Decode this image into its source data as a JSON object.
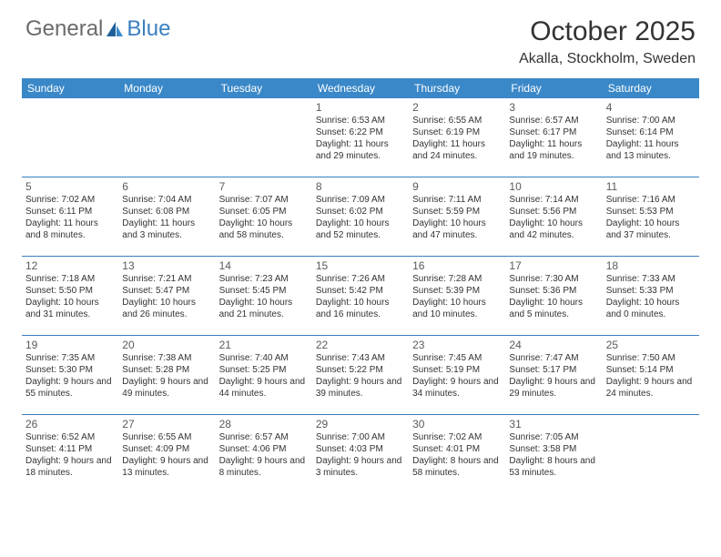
{
  "logo": {
    "text1": "General",
    "text2": "Blue"
  },
  "title": "October 2025",
  "location": "Akalla, Stockholm, Sweden",
  "colors": {
    "header_bg": "#3a88c8",
    "header_text": "#ffffff",
    "rule": "#3a7fbf",
    "body_text": "#333333",
    "logo_gray": "#6b6b6b",
    "logo_blue": "#3a7fbf",
    "page_bg": "#ffffff"
  },
  "dow": [
    "Sunday",
    "Monday",
    "Tuesday",
    "Wednesday",
    "Thursday",
    "Friday",
    "Saturday"
  ],
  "weeks": [
    [
      {
        "n": "",
        "sr": "",
        "ss": "",
        "dl": ""
      },
      {
        "n": "",
        "sr": "",
        "ss": "",
        "dl": ""
      },
      {
        "n": "",
        "sr": "",
        "ss": "",
        "dl": ""
      },
      {
        "n": "1",
        "sr": "Sunrise: 6:53 AM",
        "ss": "Sunset: 6:22 PM",
        "dl": "Daylight: 11 hours and 29 minutes."
      },
      {
        "n": "2",
        "sr": "Sunrise: 6:55 AM",
        "ss": "Sunset: 6:19 PM",
        "dl": "Daylight: 11 hours and 24 minutes."
      },
      {
        "n": "3",
        "sr": "Sunrise: 6:57 AM",
        "ss": "Sunset: 6:17 PM",
        "dl": "Daylight: 11 hours and 19 minutes."
      },
      {
        "n": "4",
        "sr": "Sunrise: 7:00 AM",
        "ss": "Sunset: 6:14 PM",
        "dl": "Daylight: 11 hours and 13 minutes."
      }
    ],
    [
      {
        "n": "5",
        "sr": "Sunrise: 7:02 AM",
        "ss": "Sunset: 6:11 PM",
        "dl": "Daylight: 11 hours and 8 minutes."
      },
      {
        "n": "6",
        "sr": "Sunrise: 7:04 AM",
        "ss": "Sunset: 6:08 PM",
        "dl": "Daylight: 11 hours and 3 minutes."
      },
      {
        "n": "7",
        "sr": "Sunrise: 7:07 AM",
        "ss": "Sunset: 6:05 PM",
        "dl": "Daylight: 10 hours and 58 minutes."
      },
      {
        "n": "8",
        "sr": "Sunrise: 7:09 AM",
        "ss": "Sunset: 6:02 PM",
        "dl": "Daylight: 10 hours and 52 minutes."
      },
      {
        "n": "9",
        "sr": "Sunrise: 7:11 AM",
        "ss": "Sunset: 5:59 PM",
        "dl": "Daylight: 10 hours and 47 minutes."
      },
      {
        "n": "10",
        "sr": "Sunrise: 7:14 AM",
        "ss": "Sunset: 5:56 PM",
        "dl": "Daylight: 10 hours and 42 minutes."
      },
      {
        "n": "11",
        "sr": "Sunrise: 7:16 AM",
        "ss": "Sunset: 5:53 PM",
        "dl": "Daylight: 10 hours and 37 minutes."
      }
    ],
    [
      {
        "n": "12",
        "sr": "Sunrise: 7:18 AM",
        "ss": "Sunset: 5:50 PM",
        "dl": "Daylight: 10 hours and 31 minutes."
      },
      {
        "n": "13",
        "sr": "Sunrise: 7:21 AM",
        "ss": "Sunset: 5:47 PM",
        "dl": "Daylight: 10 hours and 26 minutes."
      },
      {
        "n": "14",
        "sr": "Sunrise: 7:23 AM",
        "ss": "Sunset: 5:45 PM",
        "dl": "Daylight: 10 hours and 21 minutes."
      },
      {
        "n": "15",
        "sr": "Sunrise: 7:26 AM",
        "ss": "Sunset: 5:42 PM",
        "dl": "Daylight: 10 hours and 16 minutes."
      },
      {
        "n": "16",
        "sr": "Sunrise: 7:28 AM",
        "ss": "Sunset: 5:39 PM",
        "dl": "Daylight: 10 hours and 10 minutes."
      },
      {
        "n": "17",
        "sr": "Sunrise: 7:30 AM",
        "ss": "Sunset: 5:36 PM",
        "dl": "Daylight: 10 hours and 5 minutes."
      },
      {
        "n": "18",
        "sr": "Sunrise: 7:33 AM",
        "ss": "Sunset: 5:33 PM",
        "dl": "Daylight: 10 hours and 0 minutes."
      }
    ],
    [
      {
        "n": "19",
        "sr": "Sunrise: 7:35 AM",
        "ss": "Sunset: 5:30 PM",
        "dl": "Daylight: 9 hours and 55 minutes."
      },
      {
        "n": "20",
        "sr": "Sunrise: 7:38 AM",
        "ss": "Sunset: 5:28 PM",
        "dl": "Daylight: 9 hours and 49 minutes."
      },
      {
        "n": "21",
        "sr": "Sunrise: 7:40 AM",
        "ss": "Sunset: 5:25 PM",
        "dl": "Daylight: 9 hours and 44 minutes."
      },
      {
        "n": "22",
        "sr": "Sunrise: 7:43 AM",
        "ss": "Sunset: 5:22 PM",
        "dl": "Daylight: 9 hours and 39 minutes."
      },
      {
        "n": "23",
        "sr": "Sunrise: 7:45 AM",
        "ss": "Sunset: 5:19 PM",
        "dl": "Daylight: 9 hours and 34 minutes."
      },
      {
        "n": "24",
        "sr": "Sunrise: 7:47 AM",
        "ss": "Sunset: 5:17 PM",
        "dl": "Daylight: 9 hours and 29 minutes."
      },
      {
        "n": "25",
        "sr": "Sunrise: 7:50 AM",
        "ss": "Sunset: 5:14 PM",
        "dl": "Daylight: 9 hours and 24 minutes."
      }
    ],
    [
      {
        "n": "26",
        "sr": "Sunrise: 6:52 AM",
        "ss": "Sunset: 4:11 PM",
        "dl": "Daylight: 9 hours and 18 minutes."
      },
      {
        "n": "27",
        "sr": "Sunrise: 6:55 AM",
        "ss": "Sunset: 4:09 PM",
        "dl": "Daylight: 9 hours and 13 minutes."
      },
      {
        "n": "28",
        "sr": "Sunrise: 6:57 AM",
        "ss": "Sunset: 4:06 PM",
        "dl": "Daylight: 9 hours and 8 minutes."
      },
      {
        "n": "29",
        "sr": "Sunrise: 7:00 AM",
        "ss": "Sunset: 4:03 PM",
        "dl": "Daylight: 9 hours and 3 minutes."
      },
      {
        "n": "30",
        "sr": "Sunrise: 7:02 AM",
        "ss": "Sunset: 4:01 PM",
        "dl": "Daylight: 8 hours and 58 minutes."
      },
      {
        "n": "31",
        "sr": "Sunrise: 7:05 AM",
        "ss": "Sunset: 3:58 PM",
        "dl": "Daylight: 8 hours and 53 minutes."
      },
      {
        "n": "",
        "sr": "",
        "ss": "",
        "dl": ""
      }
    ]
  ]
}
